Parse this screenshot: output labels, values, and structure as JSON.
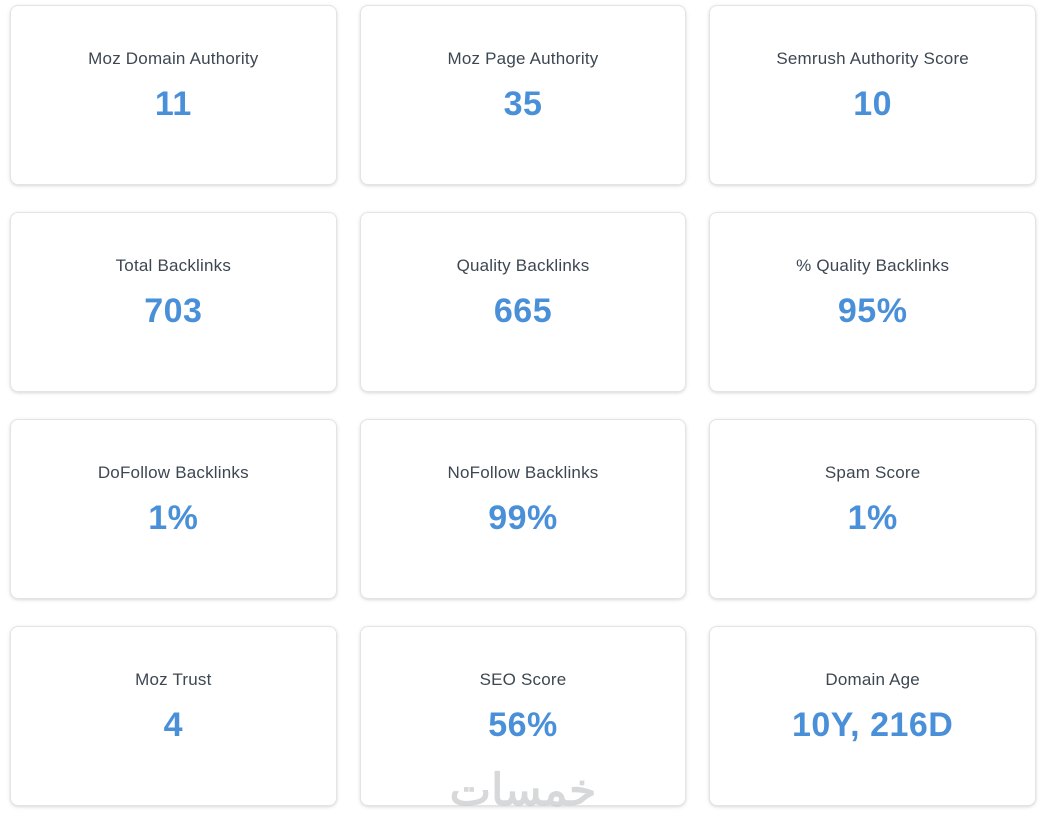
{
  "accent_color": "#4a90d9",
  "label_color": "#3d4752",
  "watermark_text": "خمسات",
  "cards": [
    {
      "label": "Moz Domain Authority",
      "value": "11"
    },
    {
      "label": "Moz Page Authority",
      "value": "35"
    },
    {
      "label": "Semrush Authority Score",
      "value": "10"
    },
    {
      "label": "Total Backlinks",
      "value": "703"
    },
    {
      "label": "Quality Backlinks",
      "value": "665"
    },
    {
      "label": "% Quality Backlinks",
      "value": "95%"
    },
    {
      "label": "DoFollow Backlinks",
      "value": "1%"
    },
    {
      "label": "NoFollow Backlinks",
      "value": "99%"
    },
    {
      "label": "Spam Score",
      "value": "1%"
    },
    {
      "label": "Moz Trust",
      "value": "4"
    },
    {
      "label": "SEO Score",
      "value": "56%"
    },
    {
      "label": "Domain Age",
      "value": "10Y, 216D"
    }
  ]
}
